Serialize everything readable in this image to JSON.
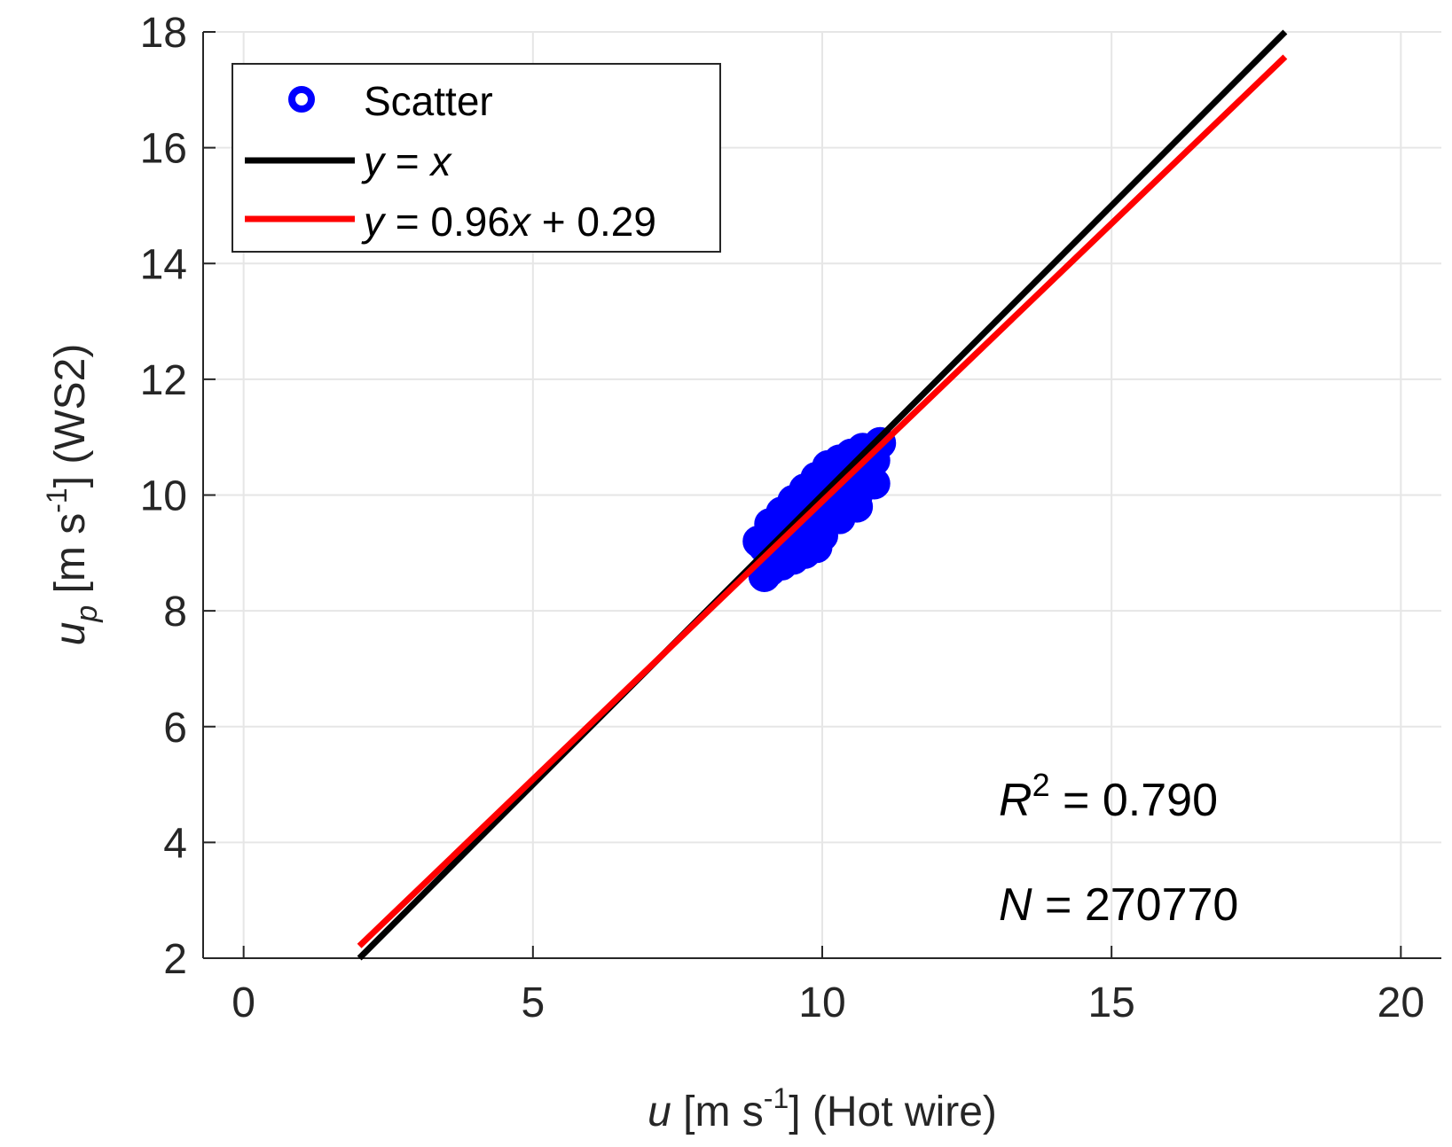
{
  "chart_data": {
    "type": "scatter",
    "xlabel": {
      "var": "u",
      "unit_pre": " [m s",
      "sup": "-1",
      "unit_post": "] (Hot wire)"
    },
    "ylabel": {
      "var": "u",
      "sub": "p",
      "unit_pre": " [m s",
      "sup": "-1",
      "unit_post": "] (WS2)"
    },
    "xlim": [
      -0.7,
      20.7
    ],
    "ylim": [
      2,
      18
    ],
    "xticks": [
      0,
      5,
      10,
      15,
      20
    ],
    "yticks": [
      2,
      4,
      6,
      8,
      10,
      12,
      14,
      16,
      18
    ],
    "grid": true,
    "legend_position": "top-left",
    "series": [
      {
        "name": "Scatter",
        "kind": "scatter",
        "color": "#0000ff",
        "points": [
          [
            9.0,
            8.6
          ],
          [
            9.1,
            8.7
          ],
          [
            9.3,
            8.8
          ],
          [
            9.5,
            8.9
          ],
          [
            9.7,
            9.0
          ],
          [
            9.9,
            9.1
          ],
          [
            9.2,
            9.0
          ],
          [
            9.0,
            9.1
          ],
          [
            8.9,
            9.2
          ],
          [
            9.1,
            9.4
          ],
          [
            9.4,
            9.3
          ],
          [
            9.6,
            9.4
          ],
          [
            9.8,
            9.6
          ],
          [
            10.0,
            9.7
          ],
          [
            10.2,
            9.8
          ],
          [
            10.4,
            9.9
          ],
          [
            10.6,
            10.0
          ],
          [
            10.8,
            10.3
          ],
          [
            10.9,
            10.6
          ],
          [
            11.0,
            10.9
          ],
          [
            10.7,
            10.8
          ],
          [
            10.5,
            10.7
          ],
          [
            10.3,
            10.6
          ],
          [
            10.1,
            10.5
          ],
          [
            9.9,
            10.3
          ],
          [
            9.7,
            10.1
          ],
          [
            9.5,
            9.9
          ],
          [
            9.3,
            9.7
          ],
          [
            9.1,
            9.5
          ],
          [
            9.6,
            9.1
          ],
          [
            10.0,
            9.3
          ],
          [
            10.3,
            9.6
          ],
          [
            10.6,
            9.8
          ],
          [
            10.9,
            10.2
          ],
          [
            10.2,
            10.2
          ],
          [
            9.8,
            9.8
          ],
          [
            10.5,
            10.3
          ],
          [
            9.4,
            9.6
          ],
          [
            10.0,
            10.0
          ],
          [
            10.7,
            10.5
          ]
        ]
      },
      {
        "name": "y = x",
        "kind": "line",
        "color": "#000000",
        "x": [
          2,
          18
        ],
        "y": [
          2,
          18
        ]
      },
      {
        "name": "y = 0.96x + 0.29",
        "kind": "line",
        "color": "#ff0000",
        "x": [
          2,
          18
        ],
        "y": [
          2.21,
          17.57
        ]
      }
    ],
    "legend": {
      "scatter": "Scatter",
      "line1": {
        "y": "y",
        "rest": " = ",
        "x": "x"
      },
      "line2": {
        "y": "y",
        "rest": " = 0.96",
        "x": "x",
        "tail": " + 0.29"
      }
    },
    "annotations": {
      "r2": {
        "var": "R",
        "sup": "2",
        "value": " = 0.790"
      },
      "n": {
        "var": "N",
        "value": " = 270770"
      }
    }
  }
}
